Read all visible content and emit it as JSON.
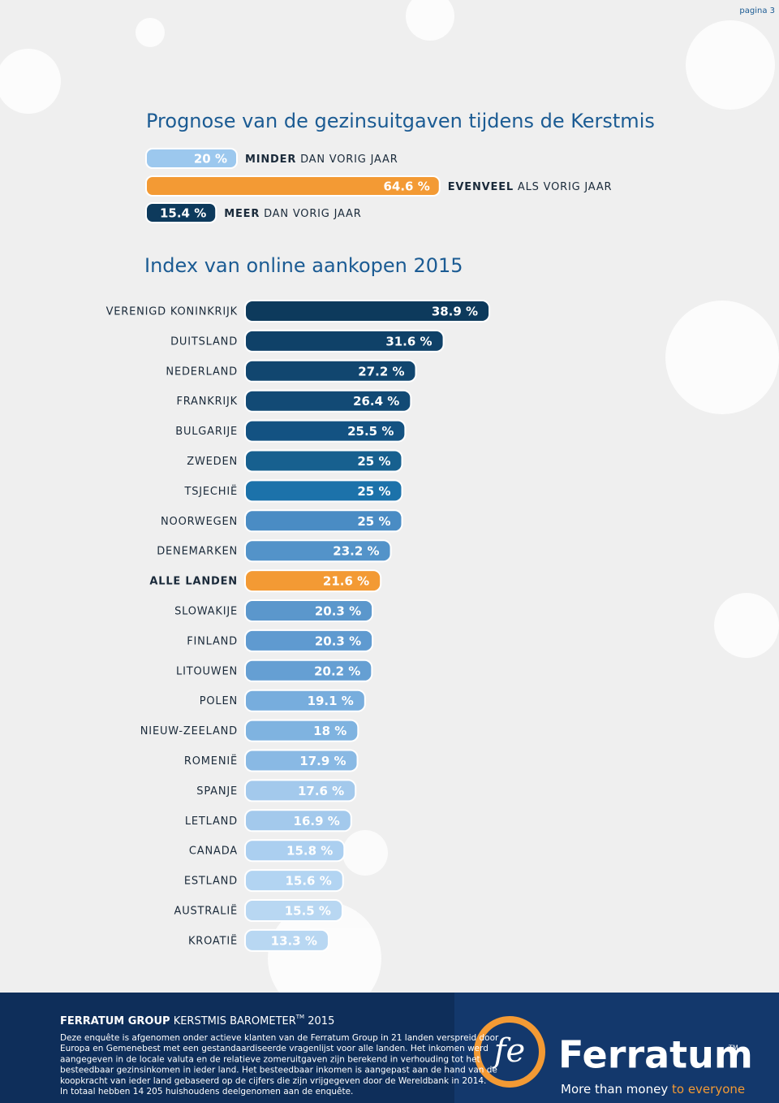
{
  "page_label": "pagina 3",
  "chart_data": [
    {
      "type": "bar",
      "title": "Prognose van de gezinsuitgaven tijdens de Kerstmis",
      "categories": [
        "MINDER",
        "EVENVEEL",
        "MEER"
      ],
      "category_suffixes": [
        "DAN VORIG JAAR",
        "ALS VORIG JAAR",
        "DAN VORIG JAAR"
      ],
      "values": [
        20,
        64.6,
        15.4
      ],
      "value_labels": [
        "20 %",
        "64.6 %",
        "15.4 %"
      ],
      "colors": [
        "#9cc8ee",
        "#f39a34",
        "#0d3a5c"
      ]
    },
    {
      "type": "bar",
      "title": "Index van online aankopen 2015",
      "categories": [
        "VERENIGD KONINKRIJK",
        "DUITSLAND",
        "NEDERLAND",
        "FRANKRIJK",
        "BULGARIJE",
        "ZWEDEN",
        "TSJECHIË",
        "NOORWEGEN",
        "DENEMARKEN",
        "ALLE LANDEN",
        "SLOWAKIJE",
        "FINLAND",
        "LITOUWEN",
        "POLEN",
        "NIEUW-ZEELAND",
        "ROMENIË",
        "SPANJE",
        "LETLAND",
        "CANADA",
        "ESTLAND",
        "AUSTRALIË",
        "KROATIË"
      ],
      "values": [
        38.9,
        31.6,
        27.2,
        26.4,
        25.5,
        25,
        25,
        25,
        23.2,
        21.6,
        20.3,
        20.3,
        20.2,
        19.1,
        18,
        17.9,
        17.6,
        16.9,
        15.8,
        15.6,
        15.5,
        13.3
      ],
      "value_labels": [
        "38.9 %",
        "31.6 %",
        "27.2 %",
        "26.4 %",
        "25.5 %",
        "25 %",
        "25 %",
        "25 %",
        "23.2 %",
        "21.6 %",
        "20.3 %",
        "20.3 %",
        "20.2 %",
        "19.1 %",
        "18 %",
        "17.9 %",
        "17.6 %",
        "16.9 %",
        "15.8 %",
        "15.6 %",
        "15.5 %",
        "13.3 %"
      ],
      "colors": [
        "#0d3a5c",
        "#0f4168",
        "#11466f",
        "#124a75",
        "#135282",
        "#17608f",
        "#1c72aa",
        "#4a8cc4",
        "#5393c9",
        "#f39a34",
        "#5b97cc",
        "#5f9ad0",
        "#659fd3",
        "#77addd",
        "#7fb3e0",
        "#89b9e4",
        "#a3c9ec",
        "#a3c9ec",
        "#abcff0",
        "#b2d4f2",
        "#b8d7f2",
        "#b8d7f2"
      ]
    }
  ],
  "footer": {
    "heading_bold": "FERRATUM GROUP",
    "heading": "KERSTMIS BAROMETER",
    "heading_tm": "TM",
    "heading_year": "2015",
    "lines": [
      "Deze enquête is afgenomen onder actieve klanten van de Ferratum Group in 21 landen verspreid door",
      "Europa en Gemenebest met een gestandaardiseerde vragenlijst voor alle landen. Het inkomen werd",
      "aangegeven in de locale valuta en de relatieve zomeruitgaven zijn berekend in verhouding tot het",
      "besteedbaar gezinsinkomen in ieder land. Het besteedbaar inkomen is aangepast aan de hand van de",
      "koopkracht van ieder land gebaseerd op de cijfers die zijn vrijgegeven door de Wereldbank in 2014.",
      "In totaal hebben 14 205 huishoudens deelgenomen aan de enquête."
    ],
    "logo_mark": "fe",
    "logo_name": "Ferratum",
    "logo_tm": "TM",
    "slogan_1": "More than money",
    "slogan_2": "to everyone"
  }
}
